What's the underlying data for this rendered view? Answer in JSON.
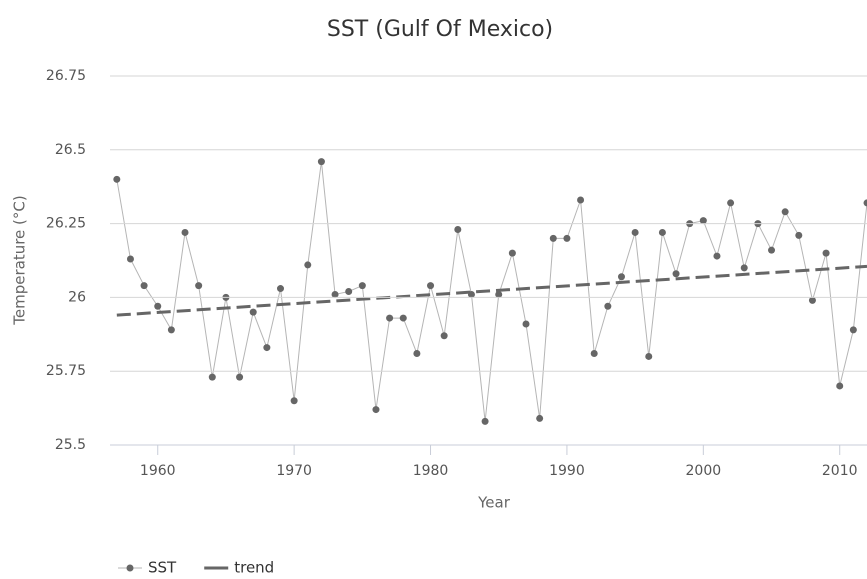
{
  "chart_data": {
    "type": "line",
    "title": "SST (Gulf Of Mexico)",
    "xlabel": "Year",
    "ylabel": "Temperature (°C)",
    "xlim": [
      1956.5,
      2012
    ],
    "xticks": [
      1960,
      1970,
      1980,
      1990,
      2000,
      2010
    ],
    "ylim": [
      25.5,
      26.75
    ],
    "yticks": [
      25.5,
      25.75,
      26,
      26.25,
      26.5,
      26.75
    ],
    "grid": true,
    "legend": "bottom-left",
    "series": [
      {
        "name": "SST",
        "color": "#666666",
        "line_color": "#b5b5b5",
        "markers": true,
        "dashed": false,
        "x": [
          1957,
          1958,
          1959,
          1960,
          1961,
          1962,
          1963,
          1964,
          1965,
          1966,
          1967,
          1968,
          1969,
          1970,
          1971,
          1972,
          1973,
          1974,
          1975,
          1976,
          1977,
          1978,
          1979,
          1980,
          1981,
          1982,
          1983,
          1984,
          1985,
          1986,
          1987,
          1988,
          1989,
          1990,
          1991,
          1992,
          1993,
          1994,
          1995,
          1996,
          1997,
          1998,
          1999,
          2000,
          2001,
          2002,
          2003,
          2004,
          2005,
          2006,
          2007,
          2008,
          2009,
          2010,
          2011,
          2012
        ],
        "values": [
          26.4,
          26.13,
          26.04,
          25.97,
          25.89,
          26.22,
          26.04,
          25.73,
          26.0,
          25.73,
          25.95,
          25.83,
          26.03,
          25.65,
          26.11,
          26.46,
          26.01,
          26.02,
          26.04,
          25.62,
          25.93,
          25.93,
          25.81,
          26.04,
          25.87,
          26.23,
          26.01,
          25.58,
          26.01,
          26.15,
          25.91,
          25.59,
          26.2,
          26.2,
          26.33,
          25.81,
          25.97,
          26.07,
          26.22,
          25.8,
          26.22,
          26.08,
          26.25,
          26.26,
          26.14,
          26.32,
          26.1,
          26.25,
          26.16,
          26.29,
          26.21,
          25.99,
          26.15,
          25.7,
          25.89,
          26.32
        ]
      },
      {
        "name": "trend",
        "color": "#666666",
        "line_color": "#666666",
        "markers": false,
        "dashed": true,
        "x": [
          1957,
          2012
        ],
        "values": [
          25.94,
          26.105
        ]
      }
    ]
  }
}
